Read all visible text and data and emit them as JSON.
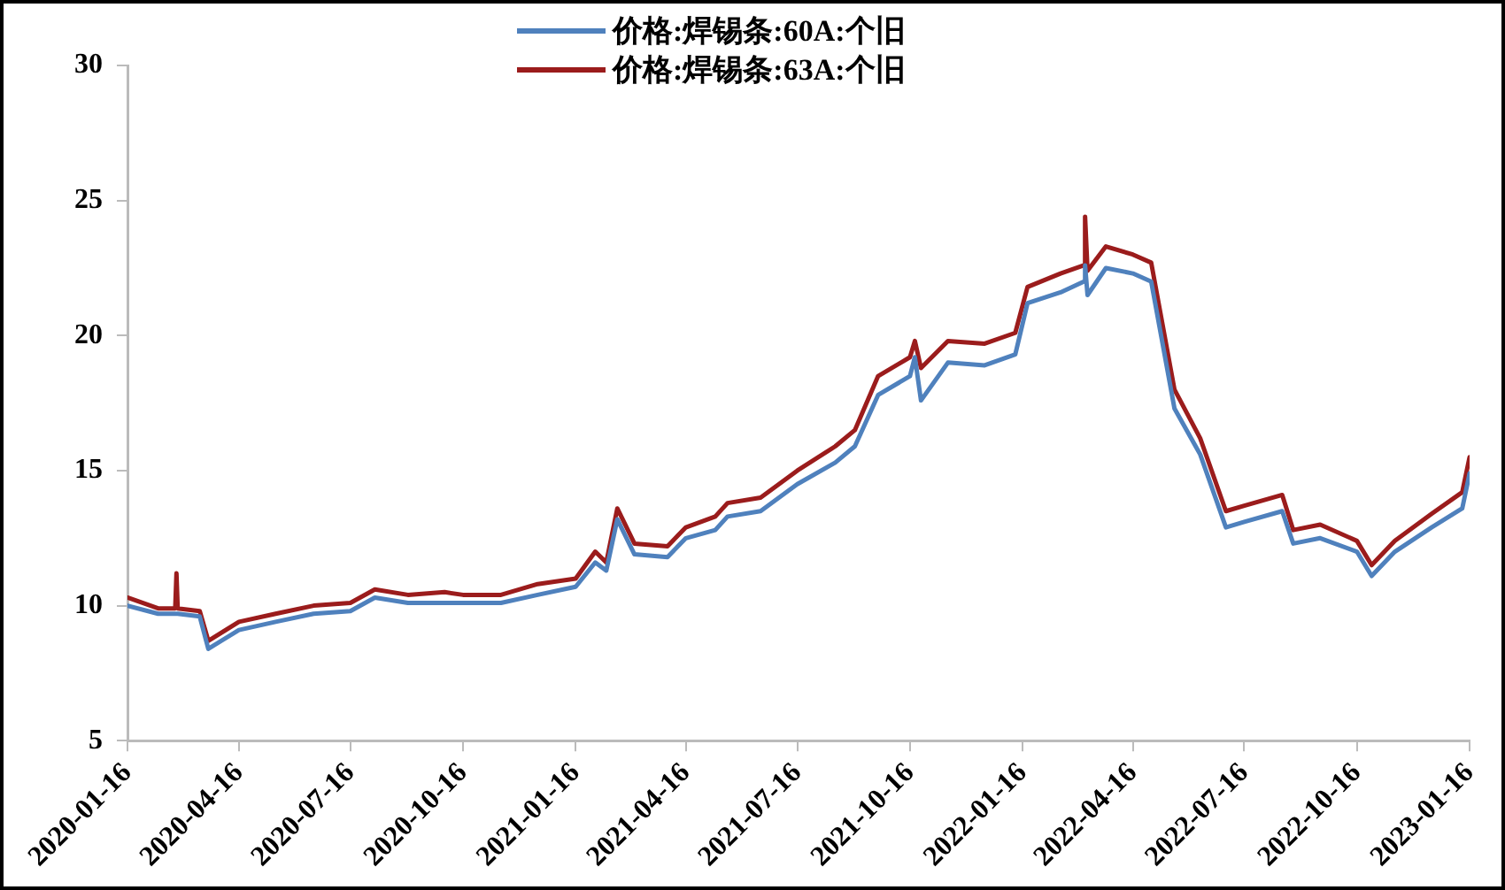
{
  "chart_data": {
    "type": "line",
    "x": [
      "2020-01-16",
      "2020-02-10",
      "2020-02-24",
      "2020-02-25",
      "2020-02-26",
      "2020-03-15",
      "2020-03-22",
      "2020-04-16",
      "2020-05-16",
      "2020-06-16",
      "2020-07-16",
      "2020-08-05",
      "2020-09-01",
      "2020-10-01",
      "2020-10-16",
      "2020-11-16",
      "2020-12-16",
      "2021-01-16",
      "2021-02-01",
      "2021-02-10",
      "2021-02-19",
      "2021-03-05",
      "2021-04-01",
      "2021-04-16",
      "2021-05-10",
      "2021-05-20",
      "2021-06-16",
      "2021-07-16",
      "2021-08-16",
      "2021-09-01",
      "2021-09-20",
      "2021-10-16",
      "2021-10-20",
      "2021-10-25",
      "2021-11-16",
      "2021-12-16",
      "2022-01-10",
      "2022-01-20",
      "2022-02-16",
      "2022-03-07",
      "2022-03-08",
      "2022-03-10",
      "2022-03-25",
      "2022-04-16",
      "2022-05-01",
      "2022-05-20",
      "2022-06-10",
      "2022-07-01",
      "2022-07-16",
      "2022-08-16",
      "2022-08-25",
      "2022-09-16",
      "2022-10-16",
      "2022-10-28",
      "2022-11-16",
      "2022-12-16",
      "2023-01-10",
      "2023-01-16"
    ],
    "series": [
      {
        "name": "价格:焊锡条:60A:个旧",
        "color": "#4f81bd",
        "values": [
          10.0,
          9.7,
          9.7,
          9.7,
          9.7,
          9.6,
          8.4,
          9.1,
          9.4,
          9.7,
          9.8,
          10.3,
          10.1,
          10.1,
          10.1,
          10.1,
          10.4,
          10.7,
          11.6,
          11.3,
          13.2,
          11.9,
          11.8,
          12.5,
          12.8,
          13.3,
          13.5,
          14.5,
          15.3,
          15.9,
          17.8,
          18.5,
          19.2,
          17.6,
          19.0,
          18.9,
          19.3,
          21.2,
          21.6,
          22.0,
          22.6,
          21.5,
          22.5,
          22.3,
          22.0,
          17.3,
          15.6,
          12.9,
          13.1,
          13.5,
          12.3,
          12.5,
          12.0,
          11.1,
          12.0,
          12.9,
          13.6,
          14.9
        ]
      },
      {
        "name": "价格:焊锡条:63A:个旧",
        "color": "#9b1c1c",
        "values": [
          10.3,
          9.9,
          9.9,
          11.2,
          9.9,
          9.8,
          8.7,
          9.4,
          9.7,
          10.0,
          10.1,
          10.6,
          10.4,
          10.5,
          10.4,
          10.4,
          10.8,
          11.0,
          12.0,
          11.6,
          13.6,
          12.3,
          12.2,
          12.9,
          13.3,
          13.8,
          14.0,
          15.0,
          15.9,
          16.5,
          18.5,
          19.2,
          19.8,
          18.8,
          19.8,
          19.7,
          20.1,
          21.8,
          22.3,
          22.6,
          24.4,
          22.4,
          23.3,
          23.0,
          22.7,
          18.0,
          16.2,
          13.5,
          13.7,
          14.1,
          12.8,
          13.0,
          12.4,
          11.5,
          12.4,
          13.4,
          14.2,
          15.5
        ]
      }
    ],
    "xlim": [
      "2020-01-16",
      "2023-01-16"
    ],
    "xticks": [
      "2020-01-16",
      "2020-04-16",
      "2020-07-16",
      "2020-10-16",
      "2021-01-16",
      "2021-04-16",
      "2021-07-16",
      "2021-10-16",
      "2022-01-16",
      "2022-04-16",
      "2022-07-16",
      "2022-10-16",
      "2023-01-16"
    ],
    "ylim": [
      5,
      30
    ],
    "yticks": [
      5,
      10,
      15,
      20,
      25,
      30
    ],
    "grid": false,
    "legend": "top",
    "marker": "none",
    "line_style": "solid"
  }
}
